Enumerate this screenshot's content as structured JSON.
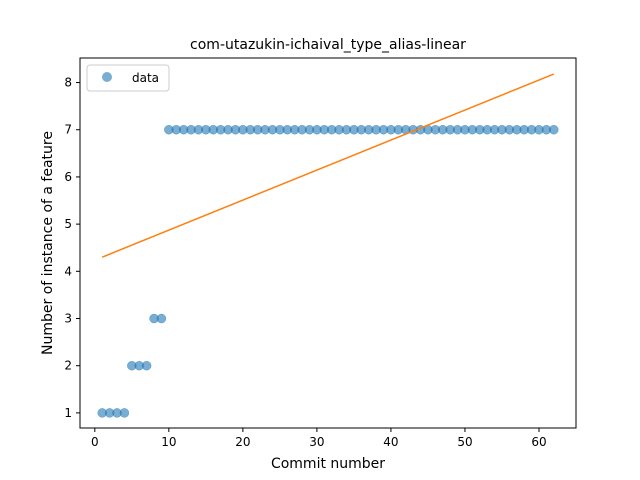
{
  "chart_data": {
    "type": "scatter",
    "title": "com-utazukin-ichaival_type_alias-linear",
    "xlabel": "Commit number",
    "ylabel": "Number of instance of a feature",
    "xlim": [
      -2,
      65
    ],
    "ylim": [
      0.68,
      8.52
    ],
    "xticks": [
      0,
      10,
      20,
      30,
      40,
      50,
      60
    ],
    "yticks": [
      1,
      2,
      3,
      4,
      5,
      6,
      7,
      8
    ],
    "grid": false,
    "legend": {
      "placement": "upper-left",
      "entries": [
        "data"
      ]
    },
    "series": [
      {
        "name": "data",
        "kind": "scatter",
        "color": "#1f77b4",
        "x": [
          1,
          2,
          3,
          4,
          5,
          6,
          7,
          8,
          9,
          10,
          11,
          12,
          13,
          14,
          15,
          16,
          17,
          18,
          19,
          20,
          21,
          22,
          23,
          24,
          25,
          26,
          27,
          28,
          29,
          30,
          31,
          32,
          33,
          34,
          35,
          36,
          37,
          38,
          39,
          40,
          41,
          42,
          43,
          44,
          45,
          46,
          47,
          48,
          49,
          50,
          51,
          52,
          53,
          54,
          55,
          56,
          57,
          58,
          59,
          60,
          61,
          62
        ],
        "y": [
          1,
          1,
          1,
          1,
          2,
          2,
          2,
          3,
          3,
          7,
          7,
          7,
          7,
          7,
          7,
          7,
          7,
          7,
          7,
          7,
          7,
          7,
          7,
          7,
          7,
          7,
          7,
          7,
          7,
          7,
          7,
          7,
          7,
          7,
          7,
          7,
          7,
          7,
          7,
          7,
          7,
          7,
          7,
          7,
          7,
          7,
          7,
          7,
          7,
          7,
          7,
          7,
          7,
          7,
          7,
          7,
          7,
          7,
          7,
          7,
          7,
          7
        ]
      },
      {
        "kind": "line",
        "color": "#ff7f0e",
        "x": [
          1,
          62
        ],
        "y": [
          4.3,
          8.18
        ]
      }
    ]
  }
}
